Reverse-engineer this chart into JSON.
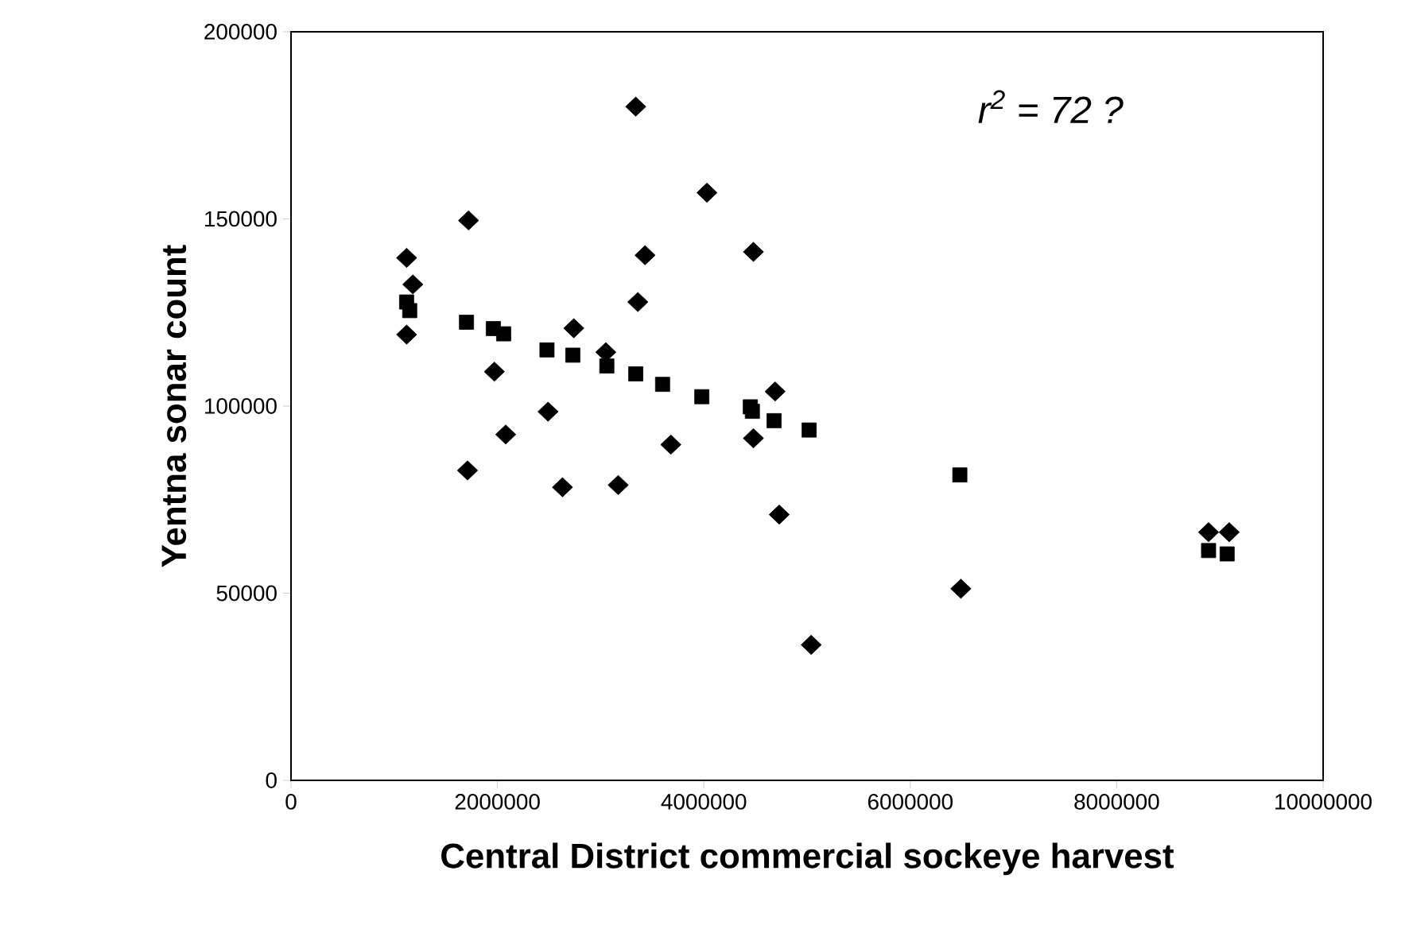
{
  "chart_data": {
    "type": "scatter",
    "xlabel": "Central District commercial sockeye harvest",
    "ylabel": "Yentna sonar count",
    "annotations": [
      "r$^{2}$ = 72 ?"
    ],
    "xlim": [
      0,
      10000000
    ],
    "xticks": [
      0,
      2000000,
      4000000,
      6000000,
      8000000,
      10000000
    ],
    "ylim": [
      0,
      200000
    ],
    "yticks": [
      0,
      50000,
      100000,
      150000,
      200000
    ],
    "series": [
      {
        "color": "#000000",
        "marker": "diamond",
        "x": [
          3340000,
          4030000,
          1720000,
          1120000,
          3430000,
          4480000,
          1180000,
          3360000,
          1120000,
          2740000,
          1970000,
          3050000,
          4690000,
          2490000,
          2080000,
          3680000,
          1710000,
          2630000,
          3170000,
          4480000,
          4730000,
          5040000,
          6490000,
          8890000,
          9090000
        ],
        "values": [
          180000,
          157000,
          149600,
          139600,
          140300,
          141200,
          132500,
          127800,
          119100,
          120800,
          109200,
          114400,
          103900,
          98500,
          92400,
          89700,
          82800,
          78300,
          78900,
          91400,
          71000,
          36200,
          51200,
          66300,
          66300
        ]
      },
      {
        "color": "#000000",
        "marker": "square",
        "x": [
          1120000,
          1150000,
          1700000,
          1960000,
          2060000,
          2480000,
          2730000,
          3060000,
          3340000,
          3600000,
          3980000,
          4450000,
          4470000,
          4680000,
          5020000,
          6480000,
          8890000,
          9070000
        ],
        "values": [
          127800,
          125500,
          122400,
          120700,
          119300,
          115000,
          113600,
          110700,
          108600,
          105800,
          102500,
          99800,
          98600,
          96100,
          93600,
          81600,
          61400,
          60500
        ]
      }
    ]
  }
}
